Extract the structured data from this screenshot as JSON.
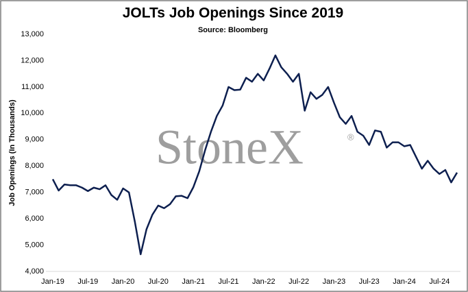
{
  "chart_data": {
    "type": "line",
    "title": "JOLTs Job Openings Since 2019",
    "subtitle": "Source: Bloomberg",
    "y_label": "Job Openings (In Thousands)",
    "watermark": "StoneX",
    "watermark_mark": "®",
    "categories": [
      "Jan-19",
      null,
      null,
      null,
      null,
      null,
      "Jul-19",
      null,
      null,
      null,
      null,
      null,
      "Jan-20",
      null,
      null,
      null,
      null,
      null,
      "Jul-20",
      null,
      null,
      null,
      null,
      null,
      "Jan-21",
      null,
      null,
      null,
      null,
      null,
      "Jul-21",
      null,
      null,
      null,
      null,
      null,
      "Jan-22",
      null,
      null,
      null,
      null,
      null,
      "Jul-22",
      null,
      null,
      null,
      null,
      null,
      "Jan-23",
      null,
      null,
      null,
      null,
      null,
      "Jul-23",
      null,
      null,
      null,
      null,
      null,
      "Jan-24",
      null,
      null,
      null,
      null,
      null,
      "Jul-24",
      null,
      null,
      null
    ],
    "series": [
      {
        "name": "Job Openings",
        "color": "#0d1f4f",
        "values": [
          7500,
          7070,
          7300,
          7270,
          7270,
          7180,
          7050,
          7180,
          7120,
          7270,
          6900,
          6720,
          7150,
          7000,
          5900,
          4650,
          5600,
          6150,
          6500,
          6400,
          6550,
          6850,
          6870,
          6780,
          7200,
          7800,
          8600,
          9300,
          9900,
          10300,
          11000,
          10880,
          10900,
          11350,
          11200,
          11500,
          11250,
          11700,
          12200,
          11750,
          11500,
          11200,
          11500,
          10100,
          10800,
          10550,
          10700,
          11000,
          10400,
          9850,
          9600,
          9900,
          9300,
          9150,
          8800,
          9350,
          9300,
          8700,
          8900,
          8900,
          8750,
          8800,
          8350,
          7900,
          8200,
          7900,
          7700,
          7850,
          7380,
          7750
        ]
      }
    ],
    "ylim": [
      4000,
      13000
    ],
    "yticks": [
      {
        "value": 4000,
        "label": "4,000"
      },
      {
        "value": 5000,
        "label": "5,000"
      },
      {
        "value": 6000,
        "label": "6,000"
      },
      {
        "value": 7000,
        "label": "7,000"
      },
      {
        "value": 8000,
        "label": "8,000"
      },
      {
        "value": 9000,
        "label": "9,000"
      },
      {
        "value": 10000,
        "label": "10,000"
      },
      {
        "value": 11000,
        "label": "11,000"
      },
      {
        "value": 12000,
        "label": "12,000"
      },
      {
        "value": 13000,
        "label": "13,000"
      }
    ],
    "grid": false
  }
}
